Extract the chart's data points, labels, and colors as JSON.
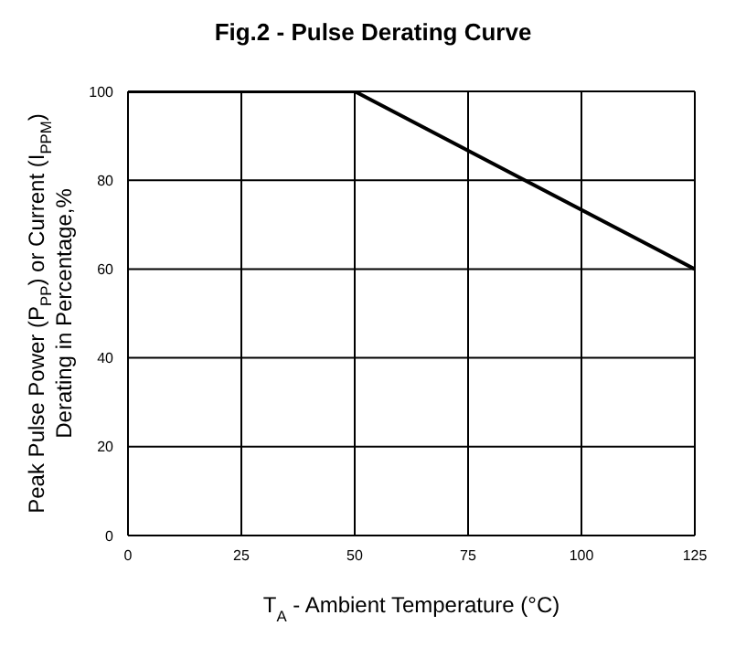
{
  "chart_data": {
    "type": "line",
    "title": "Fig.2 - Pulse Derating Curve",
    "xlabel": "T$_{A}$ - Ambient Temperature (°C)",
    "ylabel": "Peak Pulse Power (P$_{PP}$) or Current (I$_{PPM}$)\nDerating in Percentage,%",
    "x": [
      0,
      50,
      125
    ],
    "series": [
      {
        "color": "#000000",
        "values": [
          100,
          100,
          60
        ]
      }
    ],
    "xlim": [
      0,
      125
    ],
    "xticks": [
      0,
      25,
      50,
      75,
      100,
      125
    ],
    "ylim": [
      0,
      100
    ],
    "yticks": [
      0,
      20,
      40,
      60,
      80,
      100
    ],
    "grid": true,
    "legend": false,
    "marker": "none",
    "line_style": "solid"
  }
}
